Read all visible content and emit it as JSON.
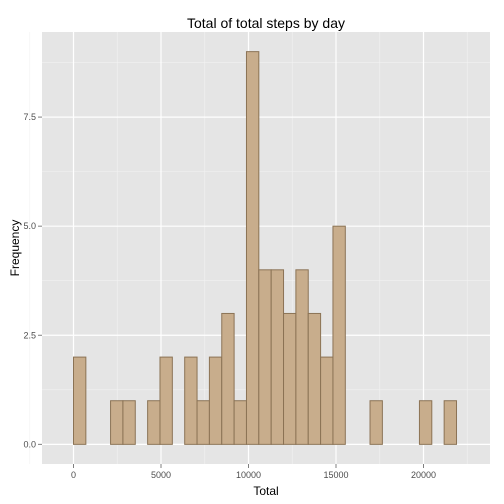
{
  "chart_data": {
    "type": "bar",
    "title": "Total of total steps by day",
    "xlabel": "Total",
    "ylabel": "Frequency",
    "xlim": [
      -1800,
      23800
    ],
    "ylim": [
      -0.45,
      9.45
    ],
    "x_ticks": [
      0,
      5000,
      10000,
      15000,
      20000
    ],
    "x_tick_labels": [
      "0",
      "5000",
      "10000",
      "15000",
      "20000"
    ],
    "y_ticks": [
      0,
      2.5,
      5,
      7.5
    ],
    "y_tick_labels": [
      "0.0",
      "2.5",
      "5.0",
      "7.5"
    ],
    "bin_width": 706.1,
    "bin_centers": [
      -353,
      353,
      1059,
      1765,
      2471,
      3177,
      3883,
      4589,
      5295,
      6001,
      6707,
      7413,
      8119,
      8825,
      9531,
      10237,
      10943,
      11649,
      12355,
      13061,
      13767,
      14473,
      15179,
      15885,
      16591,
      17297,
      18003,
      18709,
      19415,
      20121,
      20827,
      21533,
      22239
    ],
    "counts": [
      0,
      2,
      0,
      0,
      1,
      1,
      0,
      1,
      2,
      0,
      2,
      1,
      2,
      3,
      1,
      9,
      4,
      4,
      3,
      4,
      3,
      2,
      5,
      0,
      0,
      1,
      0,
      0,
      0,
      1,
      0,
      1,
      0
    ],
    "grid": true,
    "colors": {
      "panel": "#e5e5e5",
      "grid_major": "#ffffff",
      "grid_minor": "#f2f2f2",
      "bar_fill": "#c8ad8c",
      "bar_stroke": "#8b7355"
    }
  }
}
